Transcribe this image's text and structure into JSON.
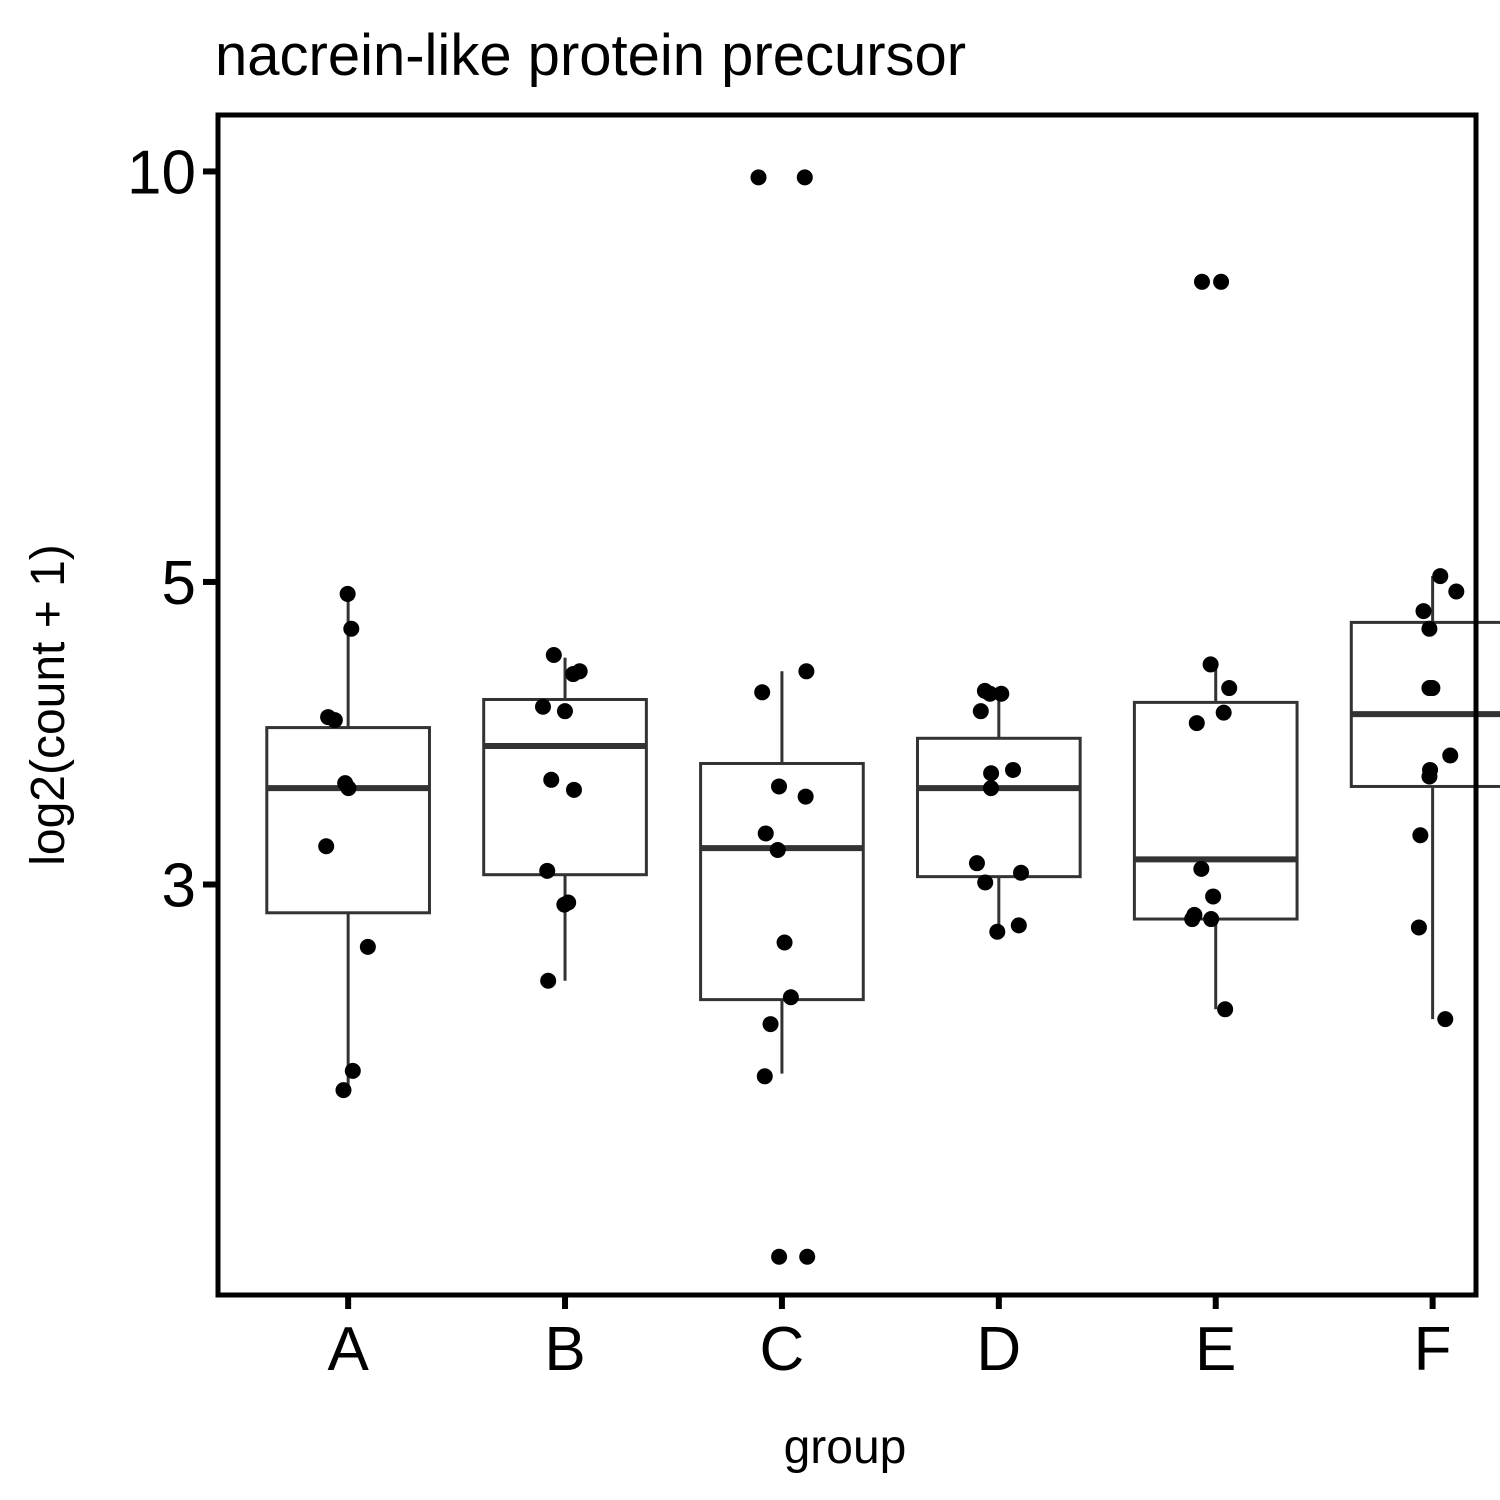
{
  "chart_data": {
    "type": "box",
    "title": "nacrein-like protein precursor",
    "xlabel": "group",
    "ylabel": "log2(count + 1)",
    "y_scale": "log",
    "y_ticks": [
      3,
      5,
      10
    ],
    "y_range": [
      1.5,
      11.0
    ],
    "categories": [
      "A",
      "B",
      "C",
      "D",
      "E",
      "F"
    ],
    "boxes": [
      {
        "group": "A",
        "whisker_low": 2.12,
        "q1": 2.86,
        "median": 3.53,
        "q3": 3.91,
        "whisker_high": 4.9
      },
      {
        "group": "B",
        "whisker_low": 2.55,
        "q1": 3.05,
        "median": 3.79,
        "q3": 4.1,
        "whisker_high": 4.4
      },
      {
        "group": "C",
        "whisker_low": 2.18,
        "q1": 2.47,
        "median": 3.19,
        "q3": 3.68,
        "whisker_high": 4.3
      },
      {
        "group": "D",
        "whisker_low": 2.75,
        "q1": 3.04,
        "median": 3.53,
        "q3": 3.84,
        "whisker_high": 4.12
      },
      {
        "group": "E",
        "whisker_low": 2.43,
        "q1": 2.83,
        "median": 3.13,
        "q3": 4.08,
        "whisker_high": 4.32
      },
      {
        "group": "F",
        "whisker_low": 2.39,
        "q1": 3.54,
        "median": 4.0,
        "q3": 4.67,
        "whisker_high": 5.05
      }
    ],
    "points": [
      {
        "group": "A",
        "y": [
          4.9,
          4.62,
          3.98,
          3.96,
          3.56,
          3.53,
          3.2,
          2.7,
          2.19,
          2.12
        ]
      },
      {
        "group": "B",
        "y": [
          4.42,
          4.3,
          4.28,
          4.05,
          4.02,
          3.58,
          3.52,
          3.07,
          2.91,
          2.9,
          2.55
        ]
      },
      {
        "group": "C",
        "y": [
          9.9,
          9.9,
          4.3,
          4.15,
          3.54,
          3.48,
          3.27,
          3.18,
          2.72,
          2.48,
          2.37,
          2.17,
          1.6,
          1.6
        ]
      },
      {
        "group": "D",
        "y": [
          4.16,
          4.14,
          4.14,
          4.02,
          3.64,
          3.62,
          3.53,
          3.11,
          3.06,
          3.01,
          2.8,
          2.77
        ]
      },
      {
        "group": "E",
        "y": [
          8.3,
          8.3,
          4.35,
          4.18,
          4.01,
          3.94,
          3.08,
          2.94,
          2.85,
          2.83,
          2.83,
          2.43
        ]
      },
      {
        "group": "F",
        "y": [
          5.05,
          4.92,
          4.76,
          4.62,
          4.18,
          4.18,
          3.73,
          3.64,
          3.6,
          3.26,
          2.79,
          2.39
        ]
      }
    ],
    "grid": false,
    "legend": "none"
  }
}
